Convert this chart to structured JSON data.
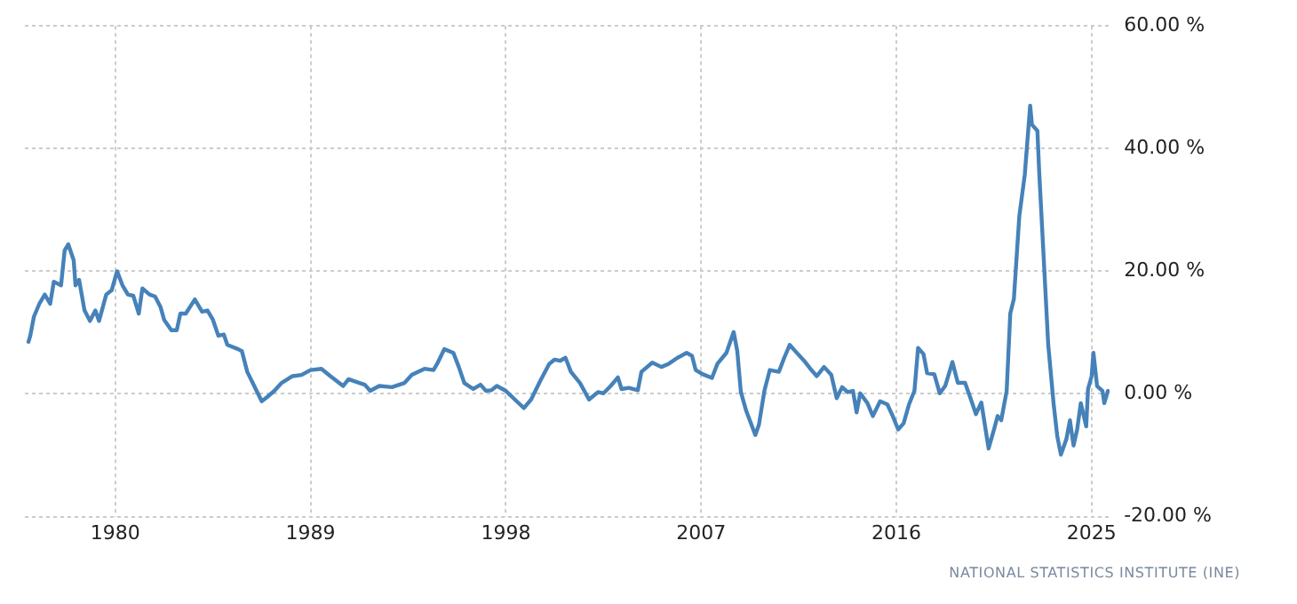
{
  "chart_data": {
    "type": "line",
    "x": [
      "1976-01",
      "1976-02",
      "1976-04",
      "1976-07",
      "1976-10",
      "1977-01",
      "1977-03",
      "1977-07",
      "1977-09",
      "1977-11",
      "1978-02",
      "1978-03",
      "1978-05",
      "1978-08",
      "1978-11",
      "1979-02",
      "1979-04",
      "1979-08",
      "1979-11",
      "1980-02",
      "1980-05",
      "1980-08",
      "1980-11",
      "1981-02",
      "1981-04",
      "1981-08",
      "1981-11",
      "1982-02",
      "1982-04",
      "1982-08",
      "1982-11",
      "1983-01",
      "1983-04",
      "1983-09",
      "1984-01",
      "1984-04",
      "1984-07",
      "1984-10",
      "1985-01",
      "1985-03",
      "1985-09",
      "1985-11",
      "1986-02",
      "1986-05",
      "1986-08",
      "1986-10",
      "1987-01",
      "1987-05",
      "1987-09",
      "1988-03",
      "1988-08",
      "1989-01",
      "1989-07",
      "1989-12",
      "1990-07",
      "1990-10",
      "1991-04",
      "1991-07",
      "1991-10",
      "1992-03",
      "1992-10",
      "1993-05",
      "1993-09",
      "1994-04",
      "1994-09",
      "1994-11",
      "1995-03",
      "1995-08",
      "1995-11",
      "1996-02",
      "1996-07",
      "1996-11",
      "1997-02",
      "1997-05",
      "1997-08",
      "1998-01",
      "1998-07",
      "1998-11",
      "1999-03",
      "1999-08",
      "2000-01",
      "2000-04",
      "2000-07",
      "2000-10",
      "2001-01",
      "2001-06",
      "2001-11",
      "2002-04",
      "2002-07",
      "2002-11",
      "2003-03",
      "2003-05",
      "2003-09",
      "2004-02",
      "2004-04",
      "2004-10",
      "2005-03",
      "2005-07",
      "2005-12",
      "2006-05",
      "2006-08",
      "2006-10",
      "2007-02",
      "2007-07",
      "2007-10",
      "2008-03",
      "2008-07",
      "2008-09",
      "2008-11",
      "2009-02",
      "2009-07",
      "2009-09",
      "2009-12",
      "2010-03",
      "2010-08",
      "2010-11",
      "2011-02",
      "2011-05",
      "2011-10",
      "2012-02",
      "2012-05",
      "2012-09",
      "2013-01",
      "2013-04",
      "2013-07",
      "2013-10",
      "2014-01",
      "2014-03",
      "2014-05",
      "2014-09",
      "2014-12",
      "2015-04",
      "2015-08",
      "2015-11",
      "2016-02",
      "2016-05",
      "2016-08",
      "2016-11",
      "2017-01",
      "2017-04",
      "2017-06",
      "2017-10",
      "2018-01",
      "2018-04",
      "2018-08",
      "2018-11",
      "2019-03",
      "2019-06",
      "2019-09",
      "2019-12",
      "2020-04",
      "2020-07",
      "2020-09",
      "2020-11",
      "2021-02",
      "2021-04",
      "2021-06",
      "2021-09",
      "2021-12",
      "2022-03",
      "2022-04",
      "2022-07",
      "2022-08",
      "2022-10",
      "2023-01",
      "2023-04",
      "2023-06",
      "2023-08",
      "2023-11",
      "2024-01",
      "2024-03",
      "2024-05",
      "2024-07",
      "2024-10",
      "2024-11",
      "2025-01",
      "2025-02",
      "2025-04",
      "2025-07",
      "2025-08",
      "2025-10"
    ],
    "series": [
      {
        "color": "#4682b9",
        "values": [
          8.5,
          9.5,
          12.6,
          14.7,
          16.2,
          14.7,
          18.3,
          17.7,
          23.4,
          24.4,
          21.8,
          17.7,
          18.6,
          13.6,
          11.9,
          13.6,
          11.9,
          16.2,
          16.9,
          20,
          17.7,
          16.2,
          16,
          13.1,
          17.2,
          16.2,
          15.9,
          14.2,
          12.1,
          10.4,
          10.4,
          13.1,
          13.1,
          15.4,
          13.4,
          13.6,
          12.1,
          9.5,
          9.7,
          8,
          7.3,
          7,
          3.6,
          1.8,
          0,
          -1.2,
          -0.5,
          0.5,
          1.8,
          2.9,
          3.1,
          3.9,
          4.1,
          2.9,
          1.3,
          2.4,
          1.8,
          1.5,
          0.5,
          1.3,
          1.1,
          1.8,
          3.1,
          4.1,
          3.9,
          4.9,
          7.3,
          6.7,
          4.4,
          1.8,
          0.8,
          1.5,
          0.5,
          0.6,
          1.3,
          0.5,
          -1.2,
          -2.3,
          -0.9,
          2.1,
          4.9,
          5.6,
          5.4,
          5.9,
          3.6,
          1.8,
          -0.9,
          0.3,
          0.1,
          1.3,
          2.7,
          0.8,
          1,
          0.6,
          3.6,
          5.1,
          4.4,
          4.9,
          5.9,
          6.7,
          6.2,
          3.9,
          3.2,
          2.6,
          4.9,
          6.7,
          10.1,
          7,
          0.3,
          -2.8,
          -6.7,
          -5,
          0.5,
          3.9,
          3.6,
          5.9,
          8,
          7,
          5.4,
          3.9,
          2.9,
          4.4,
          3.1,
          -0.7,
          1.1,
          0.3,
          0.5,
          -3,
          0.1,
          -1.5,
          -3.6,
          -1.2,
          -1.7,
          -3.6,
          -5.8,
          -4.8,
          -1.7,
          0.5,
          7.5,
          6.5,
          3.4,
          3.2,
          0.1,
          1.3,
          5.2,
          1.8,
          1.8,
          -0.7,
          -3.3,
          -1.4,
          -8.9,
          -5.8,
          -3.6,
          -4.3,
          0.5,
          13.1,
          15.5,
          29,
          35.7,
          47,
          43.9,
          42.9,
          36.2,
          24.9,
          8,
          -1.7,
          -6.9,
          -9.9,
          -7.4,
          -4.3,
          -8.4,
          -5.8,
          -1.5,
          -5.3,
          0.8,
          2.9,
          6.7,
          1.3,
          0.5,
          -1.5,
          0.5
        ]
      }
    ],
    "xlim": [
      "1975-11",
      "2025-11"
    ],
    "xticks": [
      "1980",
      "1989",
      "1998",
      "2007",
      "2016",
      "2025"
    ],
    "ylim": [
      -20,
      60
    ],
    "yticks": [
      {
        "value": -20,
        "label": "-20.00 %"
      },
      {
        "value": 0,
        "label": "0.00 %"
      },
      {
        "value": 20,
        "label": "20.00 %"
      },
      {
        "value": 40,
        "label": "40.00 %"
      },
      {
        "value": 60,
        "label": "60.00 %"
      }
    ],
    "grid": true,
    "legend": false,
    "marker": "none",
    "line_style": "solid",
    "annotations": [
      "NATIONAL STATISTICS INSTITUTE (INE)"
    ]
  }
}
